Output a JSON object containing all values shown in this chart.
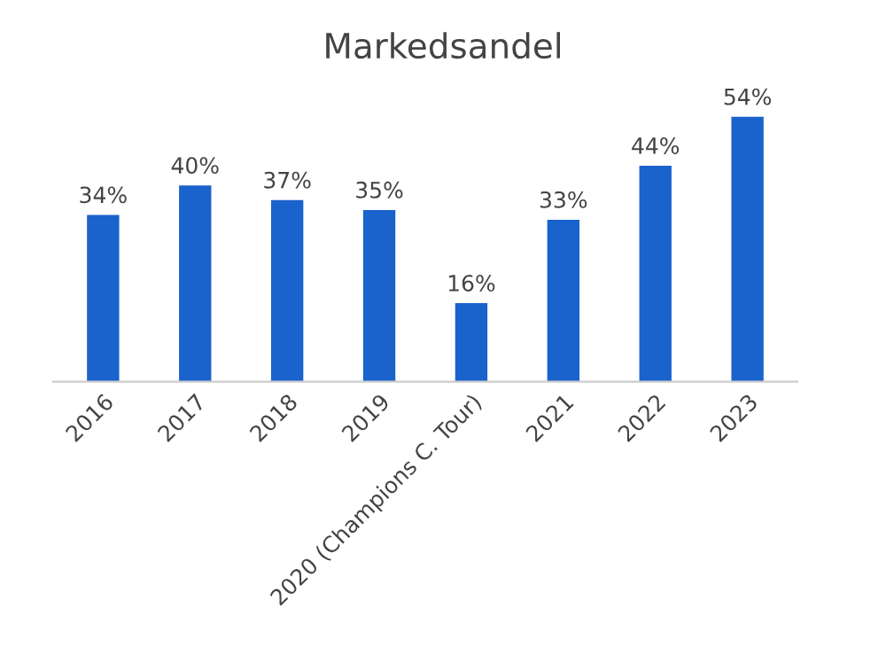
{
  "chart_data": {
    "type": "bar",
    "title": "Markedsandel",
    "categories": [
      "2016",
      "2017",
      "2018",
      "2019",
      "2020 (Champions C. Tour)",
      "2021",
      "2022",
      "2023"
    ],
    "values": [
      34,
      40,
      37,
      35,
      16,
      33,
      44,
      54
    ],
    "value_labels": [
      "34%",
      "40%",
      "37%",
      "35%",
      "16%",
      "33%",
      "44%",
      "54%"
    ],
    "color": "#1a62cc",
    "grid": false,
    "legend": false
  }
}
